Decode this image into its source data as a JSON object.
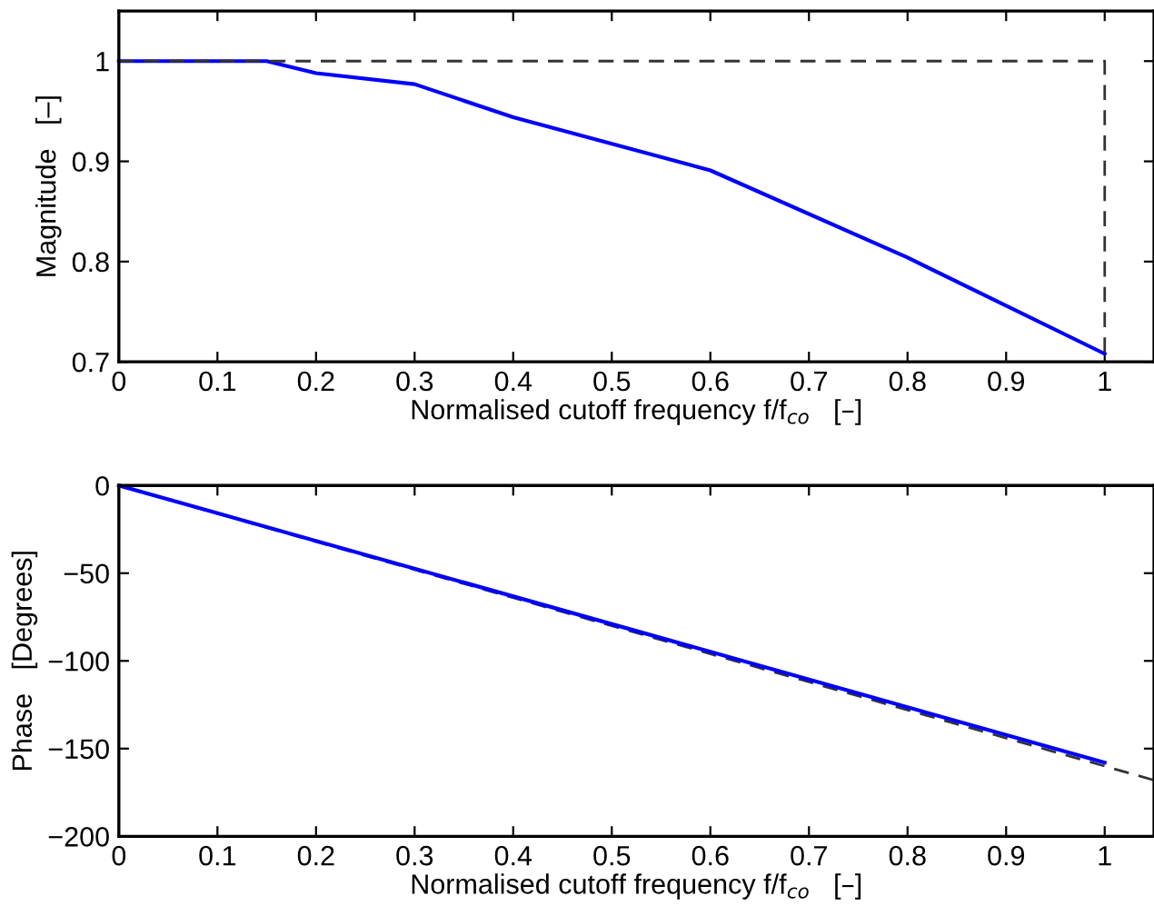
{
  "chart_data": [
    {
      "type": "line",
      "xlabel": "Normalised cutoff frequency f/f$_{co}$   [–]",
      "ylabel": "Magnitude   [–]",
      "xlim": [
        0,
        1.05
      ],
      "ylim": [
        0.7,
        1.05
      ],
      "xticks": [
        0,
        0.1,
        0.2,
        0.3,
        0.4,
        0.5,
        0.6,
        0.7,
        0.8,
        0.9,
        1
      ],
      "yticks": [
        0.7,
        0.8,
        0.9,
        1
      ],
      "grid": false,
      "legend": false,
      "series": [
        {
          "color": "#0000ff",
          "line_style": "solid",
          "x": [
            0,
            0.15,
            0.2,
            0.3,
            0.4,
            0.6,
            0.8,
            1
          ],
          "values": [
            1,
            1,
            0.988,
            0.977,
            0.944,
            0.891,
            0.804,
            0.708
          ]
        },
        {
          "color": "#333333",
          "line_style": "dashed",
          "x": [
            0,
            1,
            1
          ],
          "values": [
            1,
            1,
            0.7
          ]
        }
      ]
    },
    {
      "type": "line",
      "xlabel": "Normalised cutoff frequency f/f$_{co}$   [–]",
      "ylabel": "Phase   [Degrees]",
      "xlim": [
        0,
        1.05
      ],
      "ylim": [
        -200,
        0
      ],
      "xticks": [
        0,
        0.1,
        0.2,
        0.3,
        0.4,
        0.5,
        0.6,
        0.7,
        0.8,
        0.9,
        1
      ],
      "yticks": [
        {
          "value": -200,
          "label": "−200"
        },
        {
          "value": -150,
          "label": "−150"
        },
        {
          "value": -100,
          "label": "−100"
        },
        {
          "value": -50,
          "label": "−50"
        },
        0
      ],
      "grid": false,
      "legend": false,
      "series": [
        {
          "color": "#333333",
          "line_style": "dashed",
          "x": [
            0,
            1.05
          ],
          "values": [
            0,
            -168
          ]
        },
        {
          "color": "#0000ff",
          "line_style": "solid",
          "x": [
            0,
            1
          ],
          "values": [
            0,
            -158
          ]
        }
      ]
    }
  ]
}
